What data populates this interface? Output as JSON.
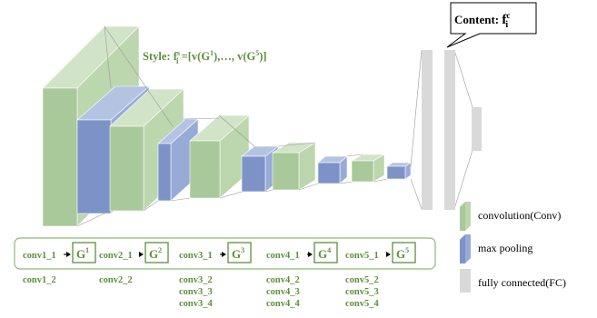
{
  "colors": {
    "conv_front": "#a9c99a",
    "conv_side": "#bcd6ae",
    "conv_top": "#d2e4c7",
    "pool_front": "#7d93c7",
    "pool_side": "#98abd6",
    "pool_top": "#b5c3e3",
    "fc": "#d9d9d9",
    "label_green": "#5e8f3f"
  },
  "style_formula": {
    "prefix": "Style: ",
    "f": "f",
    "sup": "s",
    "sub": "i",
    "rest": " =[v(G",
    "sup1": "1",
    "mid": "),…, v(G",
    "sup5": "5",
    "end": ")]"
  },
  "content_callout": {
    "prefix": "Content: ",
    "f": "f",
    "sup": "c",
    "sub": "i"
  },
  "gram_row": [
    {
      "conv_label": "conv1_1",
      "gram": "G",
      "sup": "1",
      "below": [
        "conv1_2"
      ]
    },
    {
      "conv_label": "conv2_1",
      "gram": "G",
      "sup": "2",
      "below": [
        "conv2_2"
      ]
    },
    {
      "conv_label": "conv3_1",
      "gram": "G",
      "sup": "3",
      "below": [
        "conv3_2",
        "conv3_3",
        "conv3_4"
      ]
    },
    {
      "conv_label": "conv4_1",
      "gram": "G",
      "sup": "4",
      "below": [
        "conv4_2",
        "conv4_3",
        "conv4_4"
      ]
    },
    {
      "conv_label": "conv5_1",
      "gram": "G",
      "sup": "5",
      "below": [
        "conv5_2",
        "conv5_3",
        "conv5_4"
      ]
    }
  ],
  "legend": [
    {
      "label": "convolution(Conv)",
      "kind": "conv"
    },
    {
      "label": "max pooling",
      "kind": "pool"
    },
    {
      "label": "fully connected(FC)",
      "kind": "fc"
    }
  ]
}
